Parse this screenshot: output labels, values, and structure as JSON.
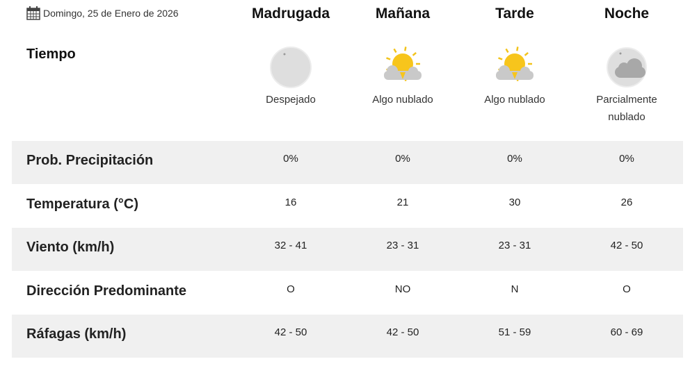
{
  "date": "Domingo, 25 de Enero de 2026",
  "periods": [
    "Madrugada",
    "Mañana",
    "Tarde",
    "Noche"
  ],
  "tiempo_label": "Tiempo",
  "conditions": [
    {
      "text": "Despejado",
      "icon": "clear-night-moon-icon"
    },
    {
      "text": "Algo nublado",
      "icon": "sun-behind-cloud-icon"
    },
    {
      "text": "Algo nublado",
      "icon": "sun-behind-cloud-icon"
    },
    {
      "text": "Parcialmente nublado",
      "icon": "moon-cloud-icon"
    }
  ],
  "rows": [
    {
      "label": "Prob. Precipitación",
      "values": [
        "0%",
        "0%",
        "0%",
        "0%"
      ]
    },
    {
      "label": "Temperatura (°C)",
      "values": [
        "16",
        "21",
        "30",
        "26"
      ]
    },
    {
      "label": "Viento (km/h)",
      "values": [
        "32 - 41",
        "23 - 31",
        "23 - 31",
        "42 - 50"
      ]
    },
    {
      "label": "Dirección Predominante",
      "values": [
        "O",
        "NO",
        "N",
        "O"
      ]
    },
    {
      "label": "Ráfagas (km/h)",
      "values": [
        "42 - 50",
        "42 - 50",
        "51 - 59",
        "60 - 69"
      ]
    }
  ]
}
